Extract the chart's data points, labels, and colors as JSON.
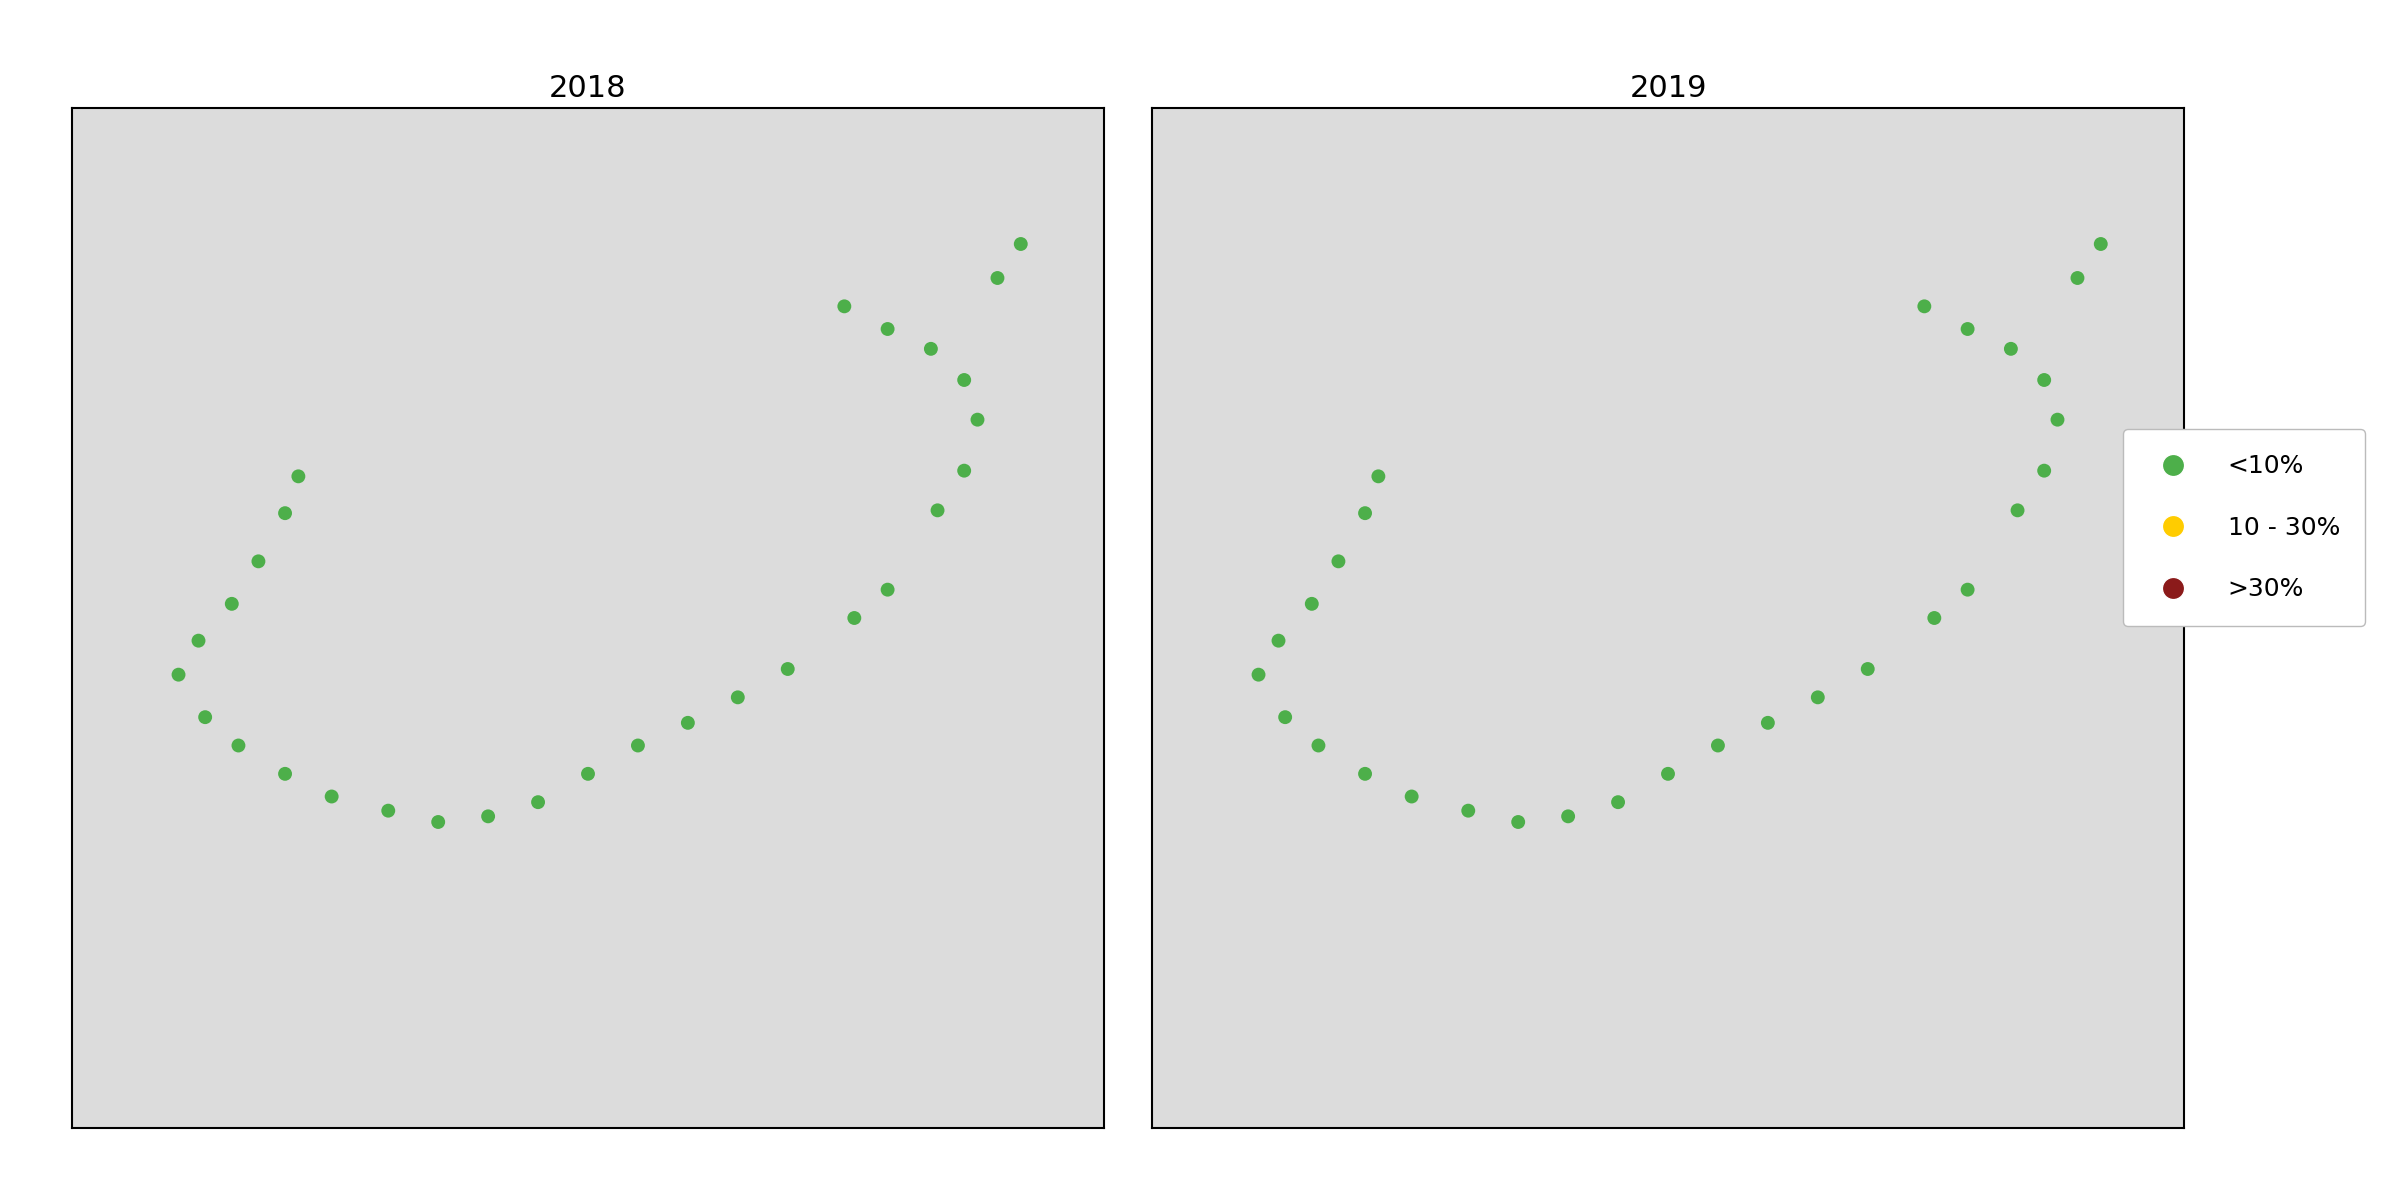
{
  "title_2018": "2018",
  "title_2019": "2019",
  "land_color": "#dcdcdc",
  "water_color": "#ffffff",
  "coastline_color": "#000000",
  "point_color_low": "#4daf4a",
  "point_color_mid": "#ffcc00",
  "point_color_high": "#8b1a1a",
  "point_size": 100,
  "legend_labels": [
    "<10%",
    "10 - 30%",
    ">30%"
  ],
  "legend_colors": [
    "#4daf4a",
    "#ffcc00",
    "#8b1a1a"
  ],
  "legend_fontsize": 18,
  "title_fontsize": 22,
  "xlim": [
    4.5,
    7.6
  ],
  "ylim": [
    57.9,
    61.5
  ],
  "points_2018": [
    [
      5.18,
      60.2
    ],
    [
      5.14,
      60.07
    ],
    [
      5.06,
      59.9
    ],
    [
      4.98,
      59.75
    ],
    [
      4.88,
      59.62
    ],
    [
      4.82,
      59.5
    ],
    [
      4.9,
      59.35
    ],
    [
      5.0,
      59.25
    ],
    [
      5.14,
      59.15
    ],
    [
      5.28,
      59.07
    ],
    [
      5.45,
      59.02
    ],
    [
      5.6,
      58.98
    ],
    [
      5.75,
      59.0
    ],
    [
      5.9,
      59.05
    ],
    [
      6.05,
      59.15
    ],
    [
      6.2,
      59.25
    ],
    [
      6.35,
      59.33
    ],
    [
      6.5,
      59.42
    ],
    [
      6.65,
      59.52
    ],
    [
      6.85,
      59.7
    ],
    [
      6.95,
      59.8
    ],
    [
      7.1,
      60.08
    ],
    [
      7.18,
      60.22
    ],
    [
      7.22,
      60.4
    ],
    [
      7.18,
      60.54
    ],
    [
      7.08,
      60.65
    ],
    [
      6.95,
      60.72
    ],
    [
      6.82,
      60.8
    ],
    [
      7.28,
      60.9
    ],
    [
      7.35,
      61.02
    ]
  ],
  "points_2019": [
    [
      5.18,
      60.2
    ],
    [
      5.14,
      60.07
    ],
    [
      5.06,
      59.9
    ],
    [
      4.98,
      59.75
    ],
    [
      4.88,
      59.62
    ],
    [
      4.82,
      59.5
    ],
    [
      4.9,
      59.35
    ],
    [
      5.0,
      59.25
    ],
    [
      5.14,
      59.15
    ],
    [
      5.28,
      59.07
    ],
    [
      5.45,
      59.02
    ],
    [
      5.6,
      58.98
    ],
    [
      5.75,
      59.0
    ],
    [
      5.9,
      59.05
    ],
    [
      6.05,
      59.15
    ],
    [
      6.2,
      59.25
    ],
    [
      6.35,
      59.33
    ],
    [
      6.5,
      59.42
    ],
    [
      6.65,
      59.52
    ],
    [
      6.85,
      59.7
    ],
    [
      6.95,
      59.8
    ],
    [
      7.1,
      60.08
    ],
    [
      7.18,
      60.22
    ],
    [
      7.22,
      60.4
    ],
    [
      7.18,
      60.54
    ],
    [
      7.08,
      60.65
    ],
    [
      6.95,
      60.72
    ],
    [
      6.82,
      60.8
    ],
    [
      7.28,
      60.9
    ],
    [
      7.35,
      61.02
    ]
  ],
  "colors_2018": [
    "#4daf4a",
    "#4daf4a",
    "#4daf4a",
    "#4daf4a",
    "#4daf4a",
    "#4daf4a",
    "#4daf4a",
    "#4daf4a",
    "#4daf4a",
    "#4daf4a",
    "#4daf4a",
    "#4daf4a",
    "#4daf4a",
    "#4daf4a",
    "#4daf4a",
    "#4daf4a",
    "#4daf4a",
    "#4daf4a",
    "#4daf4a",
    "#4daf4a",
    "#4daf4a",
    "#4daf4a",
    "#4daf4a",
    "#4daf4a",
    "#4daf4a",
    "#4daf4a",
    "#4daf4a",
    "#4daf4a",
    "#4daf4a",
    "#4daf4a"
  ],
  "colors_2019": [
    "#4daf4a",
    "#4daf4a",
    "#4daf4a",
    "#4daf4a",
    "#4daf4a",
    "#4daf4a",
    "#4daf4a",
    "#4daf4a",
    "#4daf4a",
    "#4daf4a",
    "#4daf4a",
    "#4daf4a",
    "#4daf4a",
    "#4daf4a",
    "#4daf4a",
    "#4daf4a",
    "#4daf4a",
    "#4daf4a",
    "#4daf4a",
    "#4daf4a",
    "#4daf4a",
    "#4daf4a",
    "#4daf4a",
    "#4daf4a",
    "#4daf4a",
    "#4daf4a",
    "#4daf4a",
    "#4daf4a",
    "#4daf4a",
    "#4daf4a"
  ]
}
